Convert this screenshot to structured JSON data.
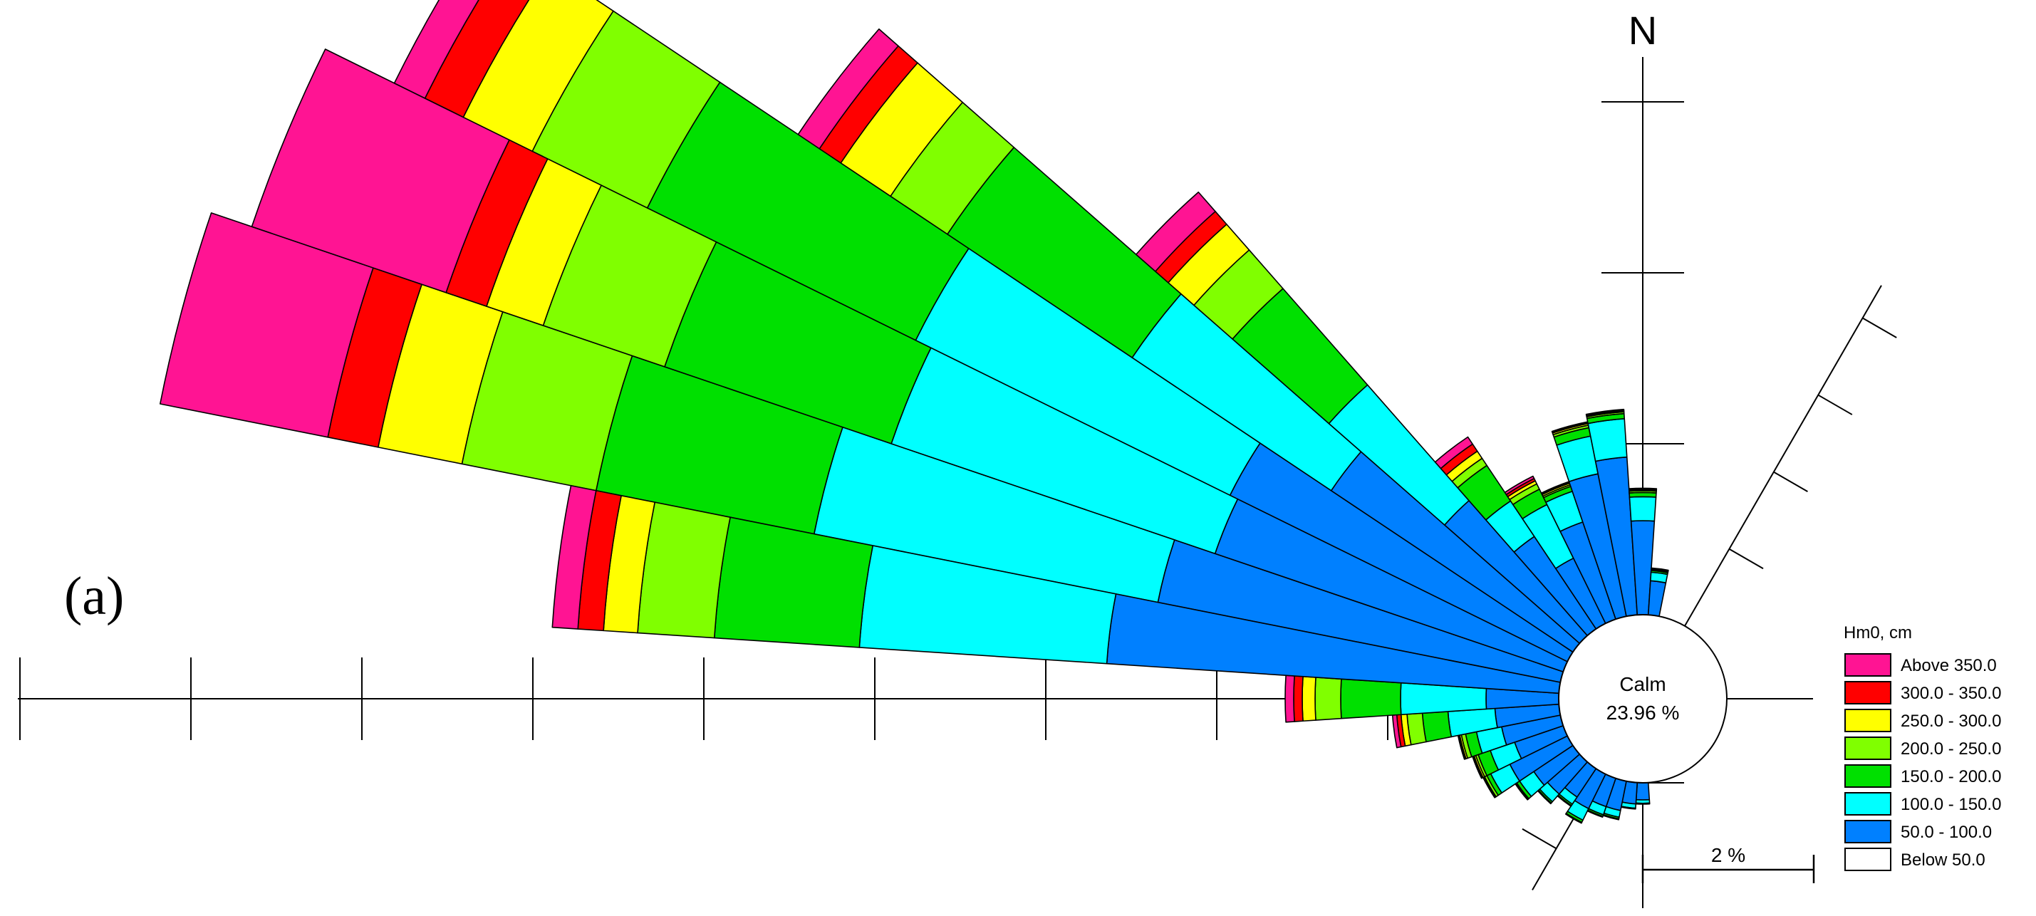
{
  "figure": {
    "panel_label": "(a)",
    "north_label": "N",
    "calm_label": "Calm",
    "calm_value": "23.96 %",
    "scale_label": "2 %"
  },
  "legend": {
    "title": "Hm0, cm",
    "items": [
      {
        "label": "Above  350.0",
        "color": "#ff1493"
      },
      {
        "label": "300.0 - 350.0",
        "color": "#ff0000"
      },
      {
        "label": "250.0 - 300.0",
        "color": "#ffff00"
      },
      {
        "label": "200.0 - 250.0",
        "color": "#80ff00"
      },
      {
        "label": "150.0 - 200.0",
        "color": "#00e000"
      },
      {
        "label": "100.0 - 150.0",
        "color": "#00ffff"
      },
      {
        "label": " 50.0 - 100.0",
        "color": "#0080ff"
      },
      {
        "label": "Below    50.0",
        "color": "#ffffff"
      }
    ]
  },
  "chart_data": {
    "type": "wind-rose",
    "variable": "Hm0, cm",
    "calm_percent": 23.96,
    "scale_tick_percent": 2,
    "bins": [
      "50.0 - 100.0",
      "100.0 - 150.0",
      "150.0 - 200.0",
      "200.0 - 250.0",
      "250.0 - 300.0",
      "300.0 - 350.0",
      "Above 350.0"
    ],
    "sectors": [
      {
        "direction_deg": 285,
        "cumulative_percent": [
          4.8,
          8.9,
          11.5,
          13.1,
          14.1,
          14.7,
          16.7
        ]
      },
      {
        "direction_deg": 292.5,
        "cumulative_percent": [
          4.3,
          8.3,
          11.1,
          12.6,
          13.3,
          13.8,
          16.2
        ]
      },
      {
        "direction_deg": 300,
        "cumulative_percent": [
          4.4,
          8.5,
          12.0,
          13.5,
          14.4,
          14.9,
          15.3
        ]
      },
      {
        "direction_deg": 307.5,
        "cumulative_percent": [
          3.4,
          6.2,
          8.8,
          9.6,
          10.3,
          10.6,
          10.9
        ]
      },
      {
        "direction_deg": 315,
        "cumulative_percent": [
          2.1,
          3.9,
          5.4,
          6.0,
          6.4,
          6.6,
          6.9
        ]
      },
      {
        "direction_deg": 322.5,
        "cumulative_percent": [
          1.3,
          1.8,
          2.3,
          2.4,
          2.5,
          2.6,
          2.7
        ]
      },
      {
        "direction_deg": 330,
        "cumulative_percent": [
          0.85,
          1.55,
          1.75,
          1.82,
          1.86,
          1.89,
          1.92
        ]
      },
      {
        "direction_deg": 337.5,
        "cumulative_percent": [
          1.2,
          1.58,
          1.64,
          1.66,
          1.68,
          1.69,
          1.7
        ]
      },
      {
        "direction_deg": 345,
        "cumulative_percent": [
          1.7,
          2.15,
          2.25,
          2.28,
          2.3,
          2.31,
          2.32
        ]
      },
      {
        "direction_deg": 352.5,
        "cumulative_percent": [
          1.85,
          2.3,
          2.36,
          2.38,
          2.39,
          2.4,
          2.41
        ]
      },
      {
        "direction_deg": 0,
        "cumulative_percent": [
          1.1,
          1.38,
          1.43,
          1.45,
          1.46,
          1.47,
          1.48
        ]
      },
      {
        "direction_deg": 7.5,
        "cumulative_percent": [
          0.4,
          0.5,
          0.52,
          0.53,
          0.54,
          0.54,
          0.55
        ]
      },
      {
        "direction_deg": 180,
        "cumulative_percent": [
          0.2,
          0.24,
          0.25,
          0.25,
          0.25,
          0.25,
          0.25
        ]
      },
      {
        "direction_deg": 187.5,
        "cumulative_percent": [
          0.25,
          0.3,
          0.31,
          0.31,
          0.31,
          0.31,
          0.31
        ]
      },
      {
        "direction_deg": 195,
        "cumulative_percent": [
          0.35,
          0.43,
          0.45,
          0.46,
          0.46,
          0.46,
          0.46
        ]
      },
      {
        "direction_deg": 202.5,
        "cumulative_percent": [
          0.35,
          0.45,
          0.47,
          0.48,
          0.48,
          0.48,
          0.48
        ]
      },
      {
        "direction_deg": 210,
        "cumulative_percent": [
          0.45,
          0.6,
          0.63,
          0.64,
          0.64,
          0.64,
          0.64
        ]
      },
      {
        "direction_deg": 217.5,
        "cumulative_percent": [
          0.4,
          0.5,
          0.52,
          0.53,
          0.53,
          0.53,
          0.53
        ]
      },
      {
        "direction_deg": 225,
        "cumulative_percent": [
          0.5,
          0.62,
          0.64,
          0.65,
          0.65,
          0.65,
          0.65
        ]
      },
      {
        "direction_deg": 232.5,
        "cumulative_percent": [
          0.55,
          0.75,
          0.79,
          0.8,
          0.81,
          0.81,
          0.81
        ]
      },
      {
        "direction_deg": 240,
        "cumulative_percent": [
          0.75,
          1.0,
          1.05,
          1.08,
          1.09,
          1.1,
          1.1
        ]
      },
      {
        "direction_deg": 247.5,
        "cumulative_percent": [
          0.6,
          0.9,
          1.05,
          1.08,
          1.1,
          1.11,
          1.12
        ]
      },
      {
        "direction_deg": 255,
        "cumulative_percent": [
          0.7,
          1.0,
          1.13,
          1.18,
          1.2,
          1.21,
          1.22
        ]
      },
      {
        "direction_deg": 262.5,
        "cumulative_percent": [
          0.75,
          1.3,
          1.6,
          1.78,
          1.85,
          1.9,
          1.95
        ]
      },
      {
        "direction_deg": 270,
        "cumulative_percent": [
          0.85,
          1.85,
          2.55,
          2.85,
          3.0,
          3.1,
          3.2
        ]
      },
      {
        "direction_deg": 277.5,
        "cumulative_percent": [
          5.3,
          8.2,
          9.9,
          10.8,
          11.2,
          11.5,
          11.8
        ]
      }
    ]
  }
}
